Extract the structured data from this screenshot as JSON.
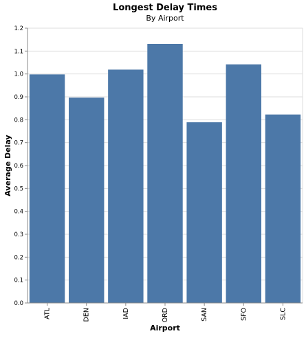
{
  "chart_data": {
    "type": "bar",
    "title": "Longest Delay Times",
    "subtitle": "By Airport",
    "xlabel": "Airport",
    "ylabel": "Average Delay",
    "categories": [
      "ATL",
      "DEN",
      "IAD",
      "ORD",
      "SAN",
      "SFO",
      "SLC"
    ],
    "values": [
      0.998,
      0.897,
      1.019,
      1.131,
      0.789,
      1.042,
      0.823
    ],
    "ylim": [
      0,
      1.2
    ],
    "yticks": [
      "0.0",
      "0.1",
      "0.2",
      "0.3",
      "0.4",
      "0.5",
      "0.6",
      "0.7",
      "0.8",
      "0.9",
      "1.0",
      "1.1",
      "1.2"
    ],
    "grid": "horizontal",
    "bar_color": "#4c78a8",
    "grid_color": "#dddddd",
    "axis_color": "#888888"
  }
}
